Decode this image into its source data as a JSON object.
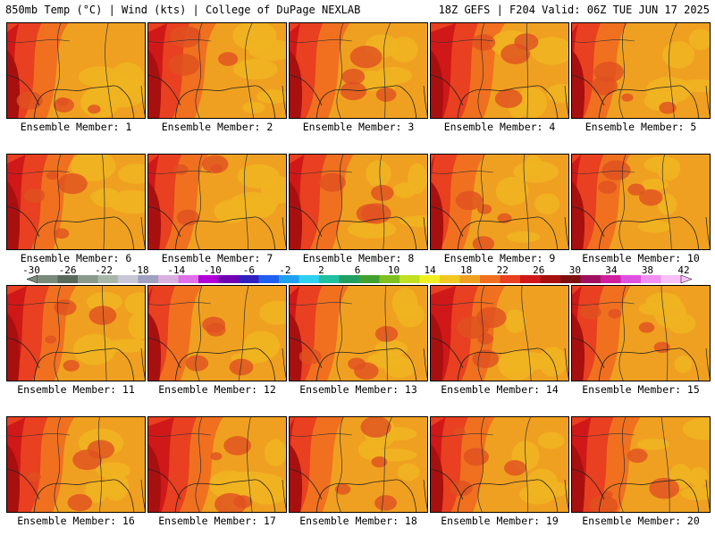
{
  "header": {
    "left": "850mb Temp (°C) | Wind (kts) | College of DuPage NEXLAB",
    "right": "18Z GEFS | F204 Valid: 06Z TUE JUN 17 2025"
  },
  "panels": [
    {
      "label": "Ensemble Member: 1"
    },
    {
      "label": "Ensemble Member: 2"
    },
    {
      "label": "Ensemble Member: 3"
    },
    {
      "label": "Ensemble Member: 4"
    },
    {
      "label": "Ensemble Member: 5"
    },
    {
      "label": "Ensemble Member: 6"
    },
    {
      "label": "Ensemble Member: 7"
    },
    {
      "label": "Ensemble Member: 8"
    },
    {
      "label": "Ensemble Member: 9"
    },
    {
      "label": "Ensemble Member: 10"
    },
    {
      "label": "Ensemble Member: 11"
    },
    {
      "label": "Ensemble Member: 12"
    },
    {
      "label": "Ensemble Member: 13"
    },
    {
      "label": "Ensemble Member: 14"
    },
    {
      "label": "Ensemble Member: 15"
    },
    {
      "label": "Ensemble Member: 16"
    },
    {
      "label": "Ensemble Member: 17"
    },
    {
      "label": "Ensemble Member: 18"
    },
    {
      "label": "Ensemble Member: 19"
    },
    {
      "label": "Ensemble Member: 20"
    }
  ],
  "colorbar": {
    "labels": [
      "-30",
      "-26",
      "-22",
      "-18",
      "-14",
      "-10",
      "-6",
      "-2",
      "2",
      "6",
      "10",
      "14",
      "18",
      "22",
      "26",
      "30",
      "34",
      "38",
      "42"
    ],
    "colors": [
      "#7a8a7a",
      "#5a6a5a",
      "#8a9a8a",
      "#a8b8a8",
      "#c8c8d8",
      "#a0a0c0",
      "#d8b0e0",
      "#e070e8",
      "#b000d8",
      "#7000b0",
      "#3020c0",
      "#2060f0",
      "#20a0f0",
      "#30d0f0",
      "#20c0a0",
      "#20a060",
      "#40a030",
      "#80c020",
      "#c0e020",
      "#f0f020",
      "#f0c820",
      "#f0a020",
      "#f07020",
      "#e84020",
      "#d01818",
      "#a81010",
      "#801010",
      "#a01060",
      "#d020a0",
      "#e050e0",
      "#f090f0",
      "#f8c0f8"
    ]
  }
}
